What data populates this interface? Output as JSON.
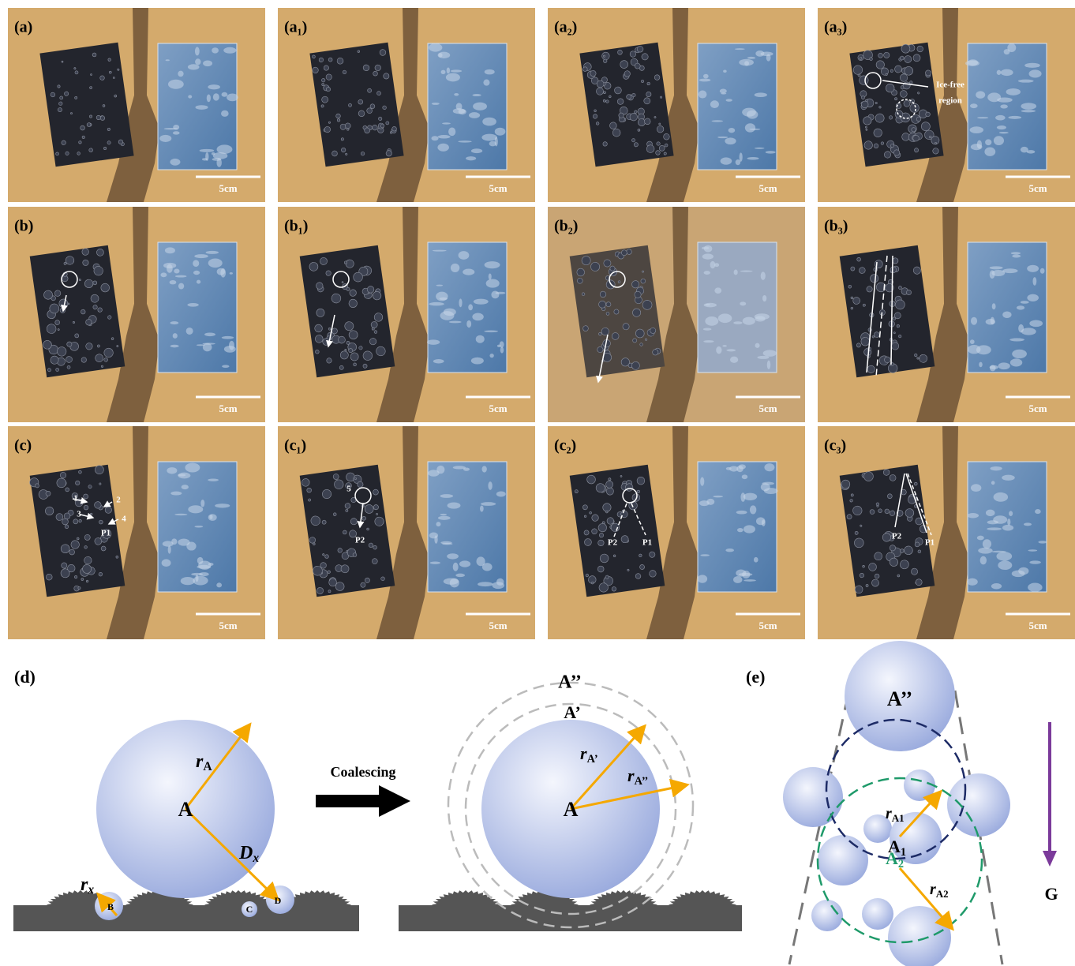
{
  "photo_panels": [
    {
      "label": "(a)",
      "scale_bar": "5cm",
      "annotations": []
    },
    {
      "label": "(a₁)",
      "scale_bar": "5cm",
      "annotations": []
    },
    {
      "label": "(a₂)",
      "scale_bar": "5cm",
      "annotations": []
    },
    {
      "label": "(a₃)",
      "scale_bar": "5cm",
      "annotations": [
        "Ice-free",
        "region"
      ]
    },
    {
      "label": "(b)",
      "scale_bar": "5cm",
      "annotations": []
    },
    {
      "label": "(b₁)",
      "scale_bar": "5cm",
      "annotations": []
    },
    {
      "label": "(b₂)",
      "scale_bar": "5cm",
      "annotations": []
    },
    {
      "label": "(b₃)",
      "scale_bar": "5cm",
      "annotations": []
    },
    {
      "label": "(c)",
      "scale_bar": "5cm",
      "annotations": [
        "1",
        "2",
        "3",
        "4",
        "P1"
      ]
    },
    {
      "label": "(c₁)",
      "scale_bar": "5cm",
      "annotations": [
        "5",
        "P2"
      ]
    },
    {
      "label": "(c₂)",
      "scale_bar": "5cm",
      "annotations": [
        "P2",
        "P1"
      ]
    },
    {
      "label": "(c₃)",
      "scale_bar": "5cm",
      "annotations": [
        "P2",
        "P1"
      ]
    }
  ],
  "diagram_d": {
    "label": "(d)",
    "before": {
      "center": "A",
      "radius": {
        "base": "r",
        "sub": "A"
      },
      "distance": {
        "base": "D",
        "sub": "x"
      },
      "small_radius": {
        "base": "r",
        "sub": "x"
      },
      "droplets": [
        "B",
        "C",
        "D"
      ]
    },
    "process": "Coalescing",
    "after": {
      "center": "A",
      "outer": "A’’",
      "middle": "A’",
      "radius_middle": {
        "base": "r",
        "sub": "A’"
      },
      "radius_outer": {
        "base": "r",
        "sub": "A’’"
      }
    }
  },
  "diagram_e": {
    "label": "(e)",
    "top": "A’’",
    "first": {
      "base": "A",
      "sub": "1"
    },
    "first_radius": {
      "base": "r",
      "sub": "A1"
    },
    "second": {
      "base": "A",
      "sub": "2"
    },
    "second_radius": {
      "base": "r",
      "sub": "A2"
    },
    "gravity": "G"
  }
}
